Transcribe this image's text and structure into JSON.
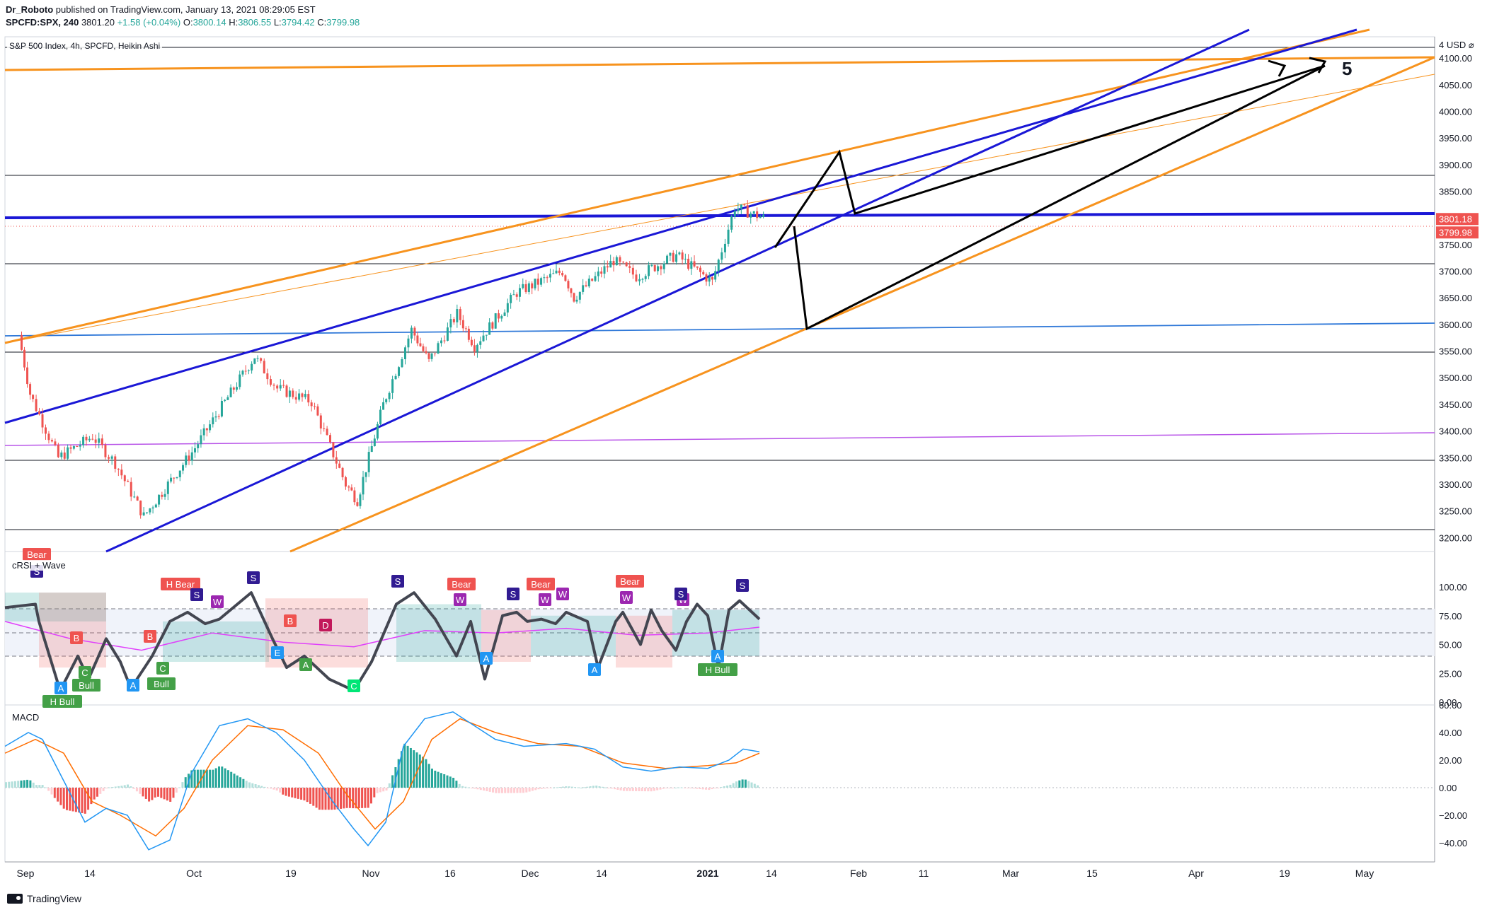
{
  "header": {
    "author": "Dr_Roboto",
    "published": "published on TradingView.com, January 13, 2021 08:29:05 EST",
    "symbol": "SPCFD:SPX, 240",
    "last": "3801.20",
    "change": "+1.58 (+0.04%)",
    "o_label": "O:",
    "o": "3800.14",
    "h_label": "H:",
    "h": "3806.55",
    "l_label": "L:",
    "l": "3794.42",
    "c_label": "C:",
    "c": "3799.98"
  },
  "main_title": "S&P 500 Index, 4h, SPCFD, Heikin Ashi",
  "currency": "USD",
  "rsi_title": "cRSI + Wave",
  "macd_title": "MACD",
  "wave_label": "5",
  "footer_brand": "TradingView",
  "colors": {
    "up": "#26a69a",
    "down": "#ef5350",
    "orange": "#f7931e",
    "blue": "#1a17d6",
    "lightblue": "#2f78d8",
    "purple": "#b854e8",
    "grid": "#131722",
    "macd": "#2196f3",
    "signal": "#ff6d00"
  },
  "chart_data": [
    {
      "type": "candlestick",
      "title": "S&P 500 Index, 4h, SPCFD, Heikin Ashi",
      "ylim": [
        3180,
        4180
      ],
      "y_ticks": [
        "4100.00",
        "4050.00",
        "4000.00",
        "3950.00",
        "3900.00",
        "3850.00",
        "3750.00",
        "3700.00",
        "3650.00",
        "3600.00",
        "3550.00",
        "3500.00",
        "3450.00",
        "3400.00",
        "3350.00",
        "3300.00",
        "3250.00",
        "3200.00"
      ],
      "last_price_tags": [
        "3801.18",
        "3799.98"
      ],
      "x_ticks": [
        "Sep",
        "14",
        "Oct",
        "19",
        "Nov",
        "16",
        "Dec",
        "14",
        "2021",
        "14",
        "Feb",
        "11",
        "Mar",
        "15",
        "Apr",
        "19",
        "May"
      ],
      "anchors": [
        {
          "x": "Sep 1",
          "y": 3580
        },
        {
          "x": "Sep 3",
          "y": 3470
        },
        {
          "x": "Sep 8",
          "y": 3350
        },
        {
          "x": "Sep 14",
          "y": 3390
        },
        {
          "x": "Sep 18",
          "y": 3340
        },
        {
          "x": "Sep 23",
          "y": 3240
        },
        {
          "x": "Oct 1",
          "y": 3360
        },
        {
          "x": "Oct 12",
          "y": 3540
        },
        {
          "x": "Oct 16",
          "y": 3480
        },
        {
          "x": "Oct 22",
          "y": 3455
        },
        {
          "x": "Oct 28",
          "y": 3300
        },
        {
          "x": "Oct 30",
          "y": 3270
        },
        {
          "x": "Nov 4",
          "y": 3450
        },
        {
          "x": "Nov 9",
          "y": 3590
        },
        {
          "x": "Nov 12",
          "y": 3530
        },
        {
          "x": "Nov 17",
          "y": 3620
        },
        {
          "x": "Nov 20",
          "y": 3560
        },
        {
          "x": "Dec 1",
          "y": 3660
        },
        {
          "x": "Dec 9",
          "y": 3700
        },
        {
          "x": "Dec 11",
          "y": 3650
        },
        {
          "x": "Dec 18",
          "y": 3720
        },
        {
          "x": "Dec 22",
          "y": 3690
        },
        {
          "x": "Dec 29",
          "y": 3730
        },
        {
          "x": "Jan 4",
          "y": 3680
        },
        {
          "x": "Jan 8",
          "y": 3820
        },
        {
          "x": "Jan 13",
          "y": 3800
        }
      ]
    },
    {
      "type": "line",
      "title": "cRSI + Wave",
      "ylim": [
        0,
        100
      ],
      "y_ticks": [
        "100.00",
        "75.00",
        "50.00",
        "25.00",
        "0.00"
      ],
      "levels": [
        70,
        50,
        30
      ],
      "labels": [
        "Bear",
        "S",
        "H Bear",
        "S",
        "W",
        "S",
        "B",
        "D",
        "W",
        "S",
        "Bear",
        "W",
        "S",
        "Bear",
        "W",
        "W",
        "Bear",
        "W",
        "S",
        "S",
        "B",
        "C",
        "B",
        "A",
        "Bull",
        "A",
        "Bull",
        "A",
        "C",
        "E",
        "A",
        "A",
        "A",
        "H Bull",
        "C",
        "H Bull"
      ]
    },
    {
      "type": "bar",
      "title": "MACD",
      "ylim": [
        -50,
        65
      ],
      "y_ticks": [
        "60.00",
        "40.00",
        "20.00",
        "0.00",
        "−20.00",
        "−40.00"
      ]
    }
  ]
}
